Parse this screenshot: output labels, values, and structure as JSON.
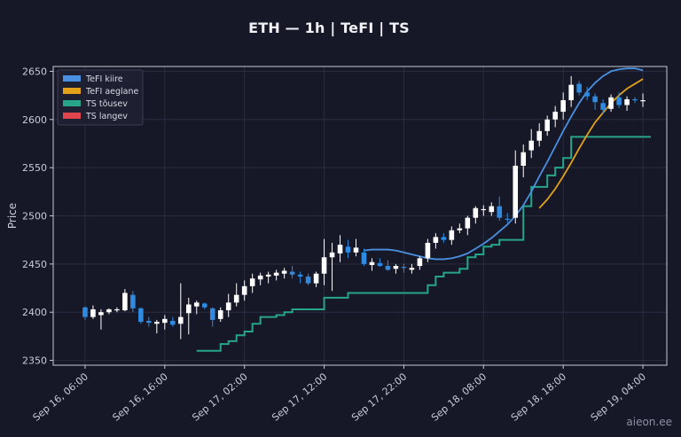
{
  "title": "ETH — 1h  |  TeFI  |  TS",
  "watermark": "aieon.ee",
  "colors": {
    "background": "#171827",
    "grid": "#2a2c40",
    "axis": "#c7c9d6",
    "candle_up": "#ffffff",
    "candle_down": "#2f8ae0",
    "tefi_fast": "#4a90e2",
    "tefi_slow": "#e3a21a",
    "ts_up": "#27a58a",
    "ts_down": "#e0454f"
  },
  "chart_data": {
    "type": "candlestick",
    "ylabel": "Price",
    "xlabel": "",
    "ylim": [
      2345,
      2655
    ],
    "yticks": [
      2350,
      2400,
      2450,
      2500,
      2550,
      2600,
      2650
    ],
    "xticks": [
      {
        "t": 0,
        "label": "Sep 16, 06:00"
      },
      {
        "t": 10,
        "label": "Sep 16, 16:00"
      },
      {
        "t": 20,
        "label": "Sep 17, 02:00"
      },
      {
        "t": 30,
        "label": "Sep 17, 12:00"
      },
      {
        "t": 40,
        "label": "Sep 17, 22:00"
      },
      {
        "t": 50,
        "label": "Sep 18, 08:00"
      },
      {
        "t": 60,
        "label": "Sep 18, 18:00"
      },
      {
        "t": 70,
        "label": "Sep 19, 04:00"
      }
    ],
    "xlim": [
      -4,
      73
    ],
    "legend": {
      "position": "top-left",
      "entries": [
        {
          "label": "TeFI kiire",
          "color": "#4a90e2"
        },
        {
          "label": "TeFI aeglane",
          "color": "#e3a21a"
        },
        {
          "label": "TS tõusev",
          "color": "#27a58a"
        },
        {
          "label": "TS langev",
          "color": "#e0454f"
        }
      ]
    },
    "candles": [
      [
        0,
        2405,
        2406,
        2392,
        2395
      ],
      [
        1,
        2395,
        2407,
        2393,
        2403
      ],
      [
        2,
        2397,
        2403,
        2382,
        2400
      ],
      [
        3,
        2400,
        2404,
        2398,
        2403
      ],
      [
        4,
        2402,
        2405,
        2400,
        2403
      ],
      [
        5,
        2402,
        2424,
        2401,
        2420
      ],
      [
        6,
        2418,
        2422,
        2400,
        2404
      ],
      [
        7,
        2404,
        2405,
        2388,
        2390
      ],
      [
        8,
        2391,
        2395,
        2385,
        2389
      ],
      [
        9,
        2388,
        2392,
        2378,
        2390
      ],
      [
        10,
        2389,
        2397,
        2382,
        2393
      ],
      [
        11,
        2391,
        2395,
        2385,
        2387
      ],
      [
        12,
        2388,
        2430,
        2372,
        2395
      ],
      [
        13,
        2399,
        2415,
        2377,
        2408
      ],
      [
        14,
        2406,
        2412,
        2398,
        2410
      ],
      [
        15,
        2409,
        2410,
        2403,
        2405
      ],
      [
        16,
        2404,
        2405,
        2385,
        2392
      ],
      [
        17,
        2393,
        2405,
        2390,
        2402
      ],
      [
        18,
        2402,
        2419,
        2395,
        2410
      ],
      [
        19,
        2410,
        2430,
        2406,
        2418
      ],
      [
        20,
        2418,
        2433,
        2412,
        2427
      ],
      [
        21,
        2427,
        2440,
        2420,
        2435
      ],
      [
        22,
        2434,
        2441,
        2428,
        2438
      ],
      [
        23,
        2437,
        2442,
        2430,
        2439
      ],
      [
        24,
        2438,
        2444,
        2433,
        2441
      ],
      [
        25,
        2440,
        2446,
        2435,
        2443
      ],
      [
        26,
        2442,
        2448,
        2435,
        2439
      ],
      [
        27,
        2439,
        2442,
        2430,
        2437
      ],
      [
        28,
        2437,
        2440,
        2428,
        2430
      ],
      [
        29,
        2430,
        2442,
        2426,
        2440
      ],
      [
        30,
        2440,
        2476,
        2428,
        2457
      ],
      [
        31,
        2457,
        2472,
        2422,
        2462
      ],
      [
        32,
        2461,
        2480,
        2452,
        2470
      ],
      [
        33,
        2468,
        2475,
        2456,
        2462
      ],
      [
        34,
        2462,
        2476,
        2458,
        2467
      ],
      [
        35,
        2462,
        2466,
        2448,
        2450
      ],
      [
        36,
        2449,
        2456,
        2443,
        2452
      ],
      [
        37,
        2451,
        2456,
        2447,
        2448
      ],
      [
        38,
        2448,
        2454,
        2443,
        2444
      ],
      [
        39,
        2445,
        2450,
        2440,
        2448
      ],
      [
        40,
        2447,
        2450,
        2441,
        2446
      ],
      [
        41,
        2444,
        2450,
        2440,
        2446
      ],
      [
        42,
        2448,
        2458,
        2444,
        2456
      ],
      [
        43,
        2456,
        2476,
        2452,
        2472
      ],
      [
        44,
        2472,
        2482,
        2466,
        2478
      ],
      [
        45,
        2478,
        2482,
        2472,
        2475
      ],
      [
        46,
        2475,
        2489,
        2470,
        2485
      ],
      [
        47,
        2485,
        2492,
        2482,
        2487
      ],
      [
        48,
        2487,
        2500,
        2480,
        2498
      ],
      [
        49,
        2498,
        2510,
        2492,
        2508
      ],
      [
        50,
        2506,
        2511,
        2500,
        2507
      ],
      [
        51,
        2504,
        2514,
        2500,
        2510
      ],
      [
        52,
        2510,
        2520,
        2495,
        2498
      ],
      [
        53,
        2497,
        2503,
        2493,
        2496
      ],
      [
        54,
        2498,
        2568,
        2492,
        2552
      ],
      [
        55,
        2552,
        2574,
        2540,
        2566
      ],
      [
        56,
        2568,
        2590,
        2560,
        2578
      ],
      [
        57,
        2578,
        2596,
        2572,
        2588
      ],
      [
        58,
        2588,
        2604,
        2583,
        2600
      ],
      [
        59,
        2600,
        2614,
        2592,
        2608
      ],
      [
        60,
        2608,
        2628,
        2600,
        2620
      ],
      [
        61,
        2620,
        2645,
        2613,
        2636
      ],
      [
        62,
        2637,
        2640,
        2625,
        2628
      ],
      [
        63,
        2628,
        2634,
        2620,
        2624
      ],
      [
        64,
        2624,
        2627,
        2610,
        2618
      ],
      [
        65,
        2617,
        2621,
        2606,
        2610
      ],
      [
        66,
        2611,
        2626,
        2608,
        2623
      ],
      [
        67,
        2623,
        2628,
        2612,
        2615
      ],
      [
        68,
        2615,
        2624,
        2609,
        2621
      ],
      [
        69,
        2621,
        2623,
        2617,
        2620
      ],
      [
        70,
        2620,
        2627,
        2613,
        2620
      ]
    ],
    "ts_up": {
      "t": [
        14,
        15,
        16,
        17,
        18,
        19,
        20,
        21,
        22,
        23,
        24,
        25,
        26,
        27,
        28,
        29,
        30,
        31,
        32,
        33,
        34,
        35,
        36,
        37,
        38,
        39,
        40,
        41,
        42,
        43,
        44,
        45,
        46,
        47,
        48,
        49,
        50,
        51,
        52,
        53,
        54,
        55,
        56,
        57,
        58,
        59,
        60,
        61,
        62,
        63,
        64,
        65,
        66,
        67,
        68,
        69,
        70
      ],
      "y": [
        2360,
        2360,
        2360,
        2367,
        2370,
        2376,
        2380,
        2388,
        2395,
        2395,
        2397,
        2400,
        2403,
        2403,
        2403,
        2403,
        2415,
        2415,
        2415,
        2420,
        2420,
        2420,
        2420,
        2420,
        2420,
        2420,
        2420,
        2420,
        2420,
        2428,
        2437,
        2441,
        2441,
        2445,
        2457,
        2460,
        2468,
        2470,
        2475,
        2475,
        2475,
        2510,
        2530,
        2530,
        2542,
        2550,
        2560,
        2582,
        2582,
        2582,
        2582,
        2582,
        2582,
        2582,
        2582,
        2582,
        2582
      ]
    },
    "tefi_fast": {
      "t": [
        35,
        36,
        37,
        38,
        39,
        40,
        41,
        42,
        43,
        44,
        45,
        46,
        47,
        48,
        49,
        50,
        51,
        52,
        53,
        54,
        55,
        56,
        57,
        58,
        59,
        60,
        61,
        62,
        63,
        64,
        65,
        66,
        67,
        68,
        69,
        70
      ],
      "y": [
        2464,
        2465,
        2465,
        2465,
        2464,
        2462,
        2460,
        2458,
        2456,
        2455,
        2455,
        2456,
        2458,
        2461,
        2466,
        2471,
        2477,
        2484,
        2491,
        2500,
        2511,
        2525,
        2541,
        2556,
        2572,
        2588,
        2603,
        2617,
        2629,
        2638,
        2645,
        2650,
        2652,
        2653,
        2653,
        2651
      ]
    },
    "tefi_slow": {
      "t": [
        57,
        58,
        59,
        60,
        61,
        62,
        63,
        64,
        65,
        66,
        67,
        68,
        69,
        70
      ],
      "y": [
        2508,
        2517,
        2528,
        2541,
        2555,
        2570,
        2584,
        2597,
        2607,
        2617,
        2625,
        2632,
        2637,
        2642
      ]
    }
  }
}
